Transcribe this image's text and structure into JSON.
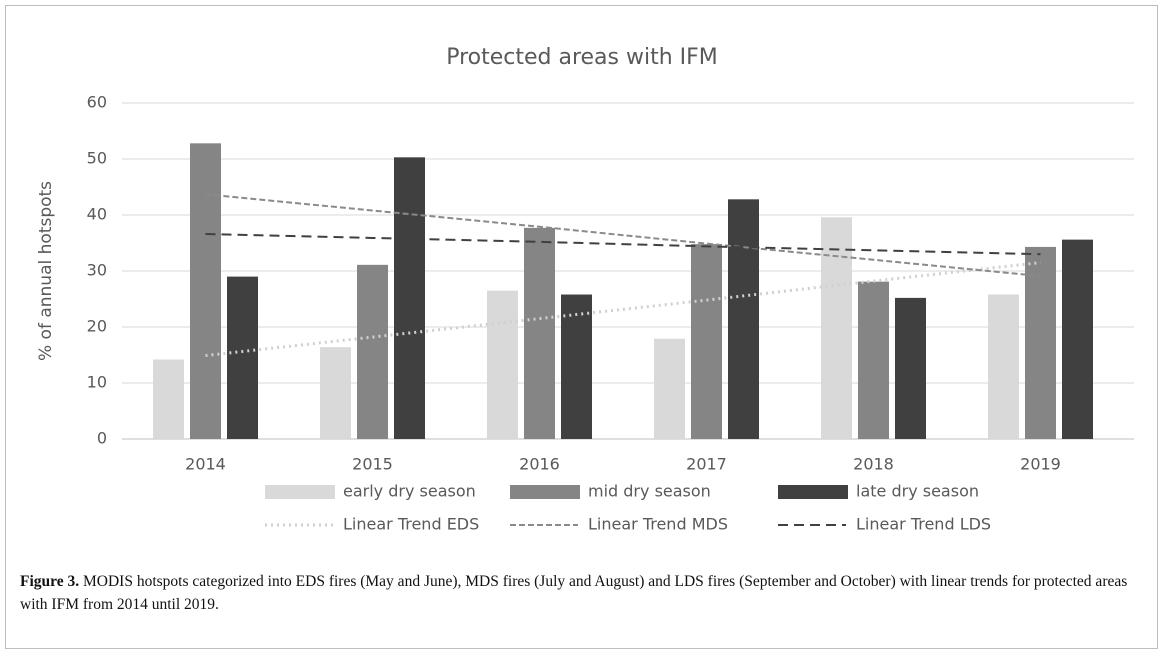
{
  "chart_data": {
    "type": "bar",
    "title": "Protected areas with IFM",
    "y_label": "% of annual hotspots",
    "categories": [
      "2014",
      "2015",
      "2016",
      "2017",
      "2018",
      "2019"
    ],
    "series": [
      {
        "name": "early dry season",
        "color": "#d9d9d9",
        "values": [
          14.2,
          16.4,
          26.5,
          17.9,
          39.6,
          25.8
        ]
      },
      {
        "name": "mid dry season",
        "color": "#858585",
        "values": [
          52.8,
          31.1,
          37.7,
          34.8,
          28.1,
          34.3
        ]
      },
      {
        "name": "late dry season",
        "color": "#404040",
        "values": [
          29,
          50.3,
          25.8,
          42.8,
          25.2,
          35.6
        ]
      },
      {
        "name": "Linear Trend EDS",
        "type": "line",
        "line_style": "dotted",
        "color": "#d0d0d0",
        "values": [
          14.9,
          18.2,
          21.5,
          24.8,
          28.2,
          31.5
        ]
      },
      {
        "name": "Linear Trend MDS",
        "type": "line",
        "line_style": "dashed",
        "color": "#8a8a8a",
        "values": [
          43.7,
          40.8,
          37.9,
          34.9,
          32.0,
          29.1
        ]
      },
      {
        "name": "Linear Trend LDS",
        "type": "line",
        "line_style": "long-dashed",
        "color": "#404040",
        "values": [
          36.6,
          35.9,
          35.2,
          34.4,
          33.7,
          33.0
        ]
      }
    ],
    "ylim": [
      0,
      60
    ],
    "yticks": [
      0,
      10,
      20,
      30,
      40,
      50,
      60
    ],
    "grid": true,
    "legend": "bottom"
  },
  "caption": {
    "label": "Figure 3.",
    "text": "MODIS hotspots categorized into EDS fires (May and June), MDS fires (July and August) and LDS fires (September and October) with linear trends for protected areas with IFM from 2014 until 2019."
  }
}
